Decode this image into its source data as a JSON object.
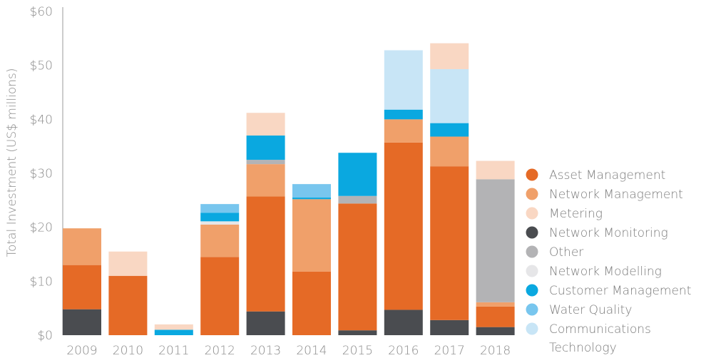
{
  "chart_data": {
    "type": "bar",
    "stacked": true,
    "title": "",
    "xlabel": "",
    "ylabel": "Total Investment (US$ millions)",
    "ylim": [
      0,
      60
    ],
    "yticks": [
      "$0",
      "$10",
      "$20",
      "$30",
      "$40",
      "$50",
      "$60"
    ],
    "categories": [
      "2009",
      "2010",
      "2011",
      "2012",
      "2013",
      "2014",
      "2015",
      "2016",
      "2017",
      "2018"
    ],
    "legend_position": "right",
    "series": [
      {
        "name": "Network Monitoring",
        "color": "#4a4c50",
        "values": [
          4.8,
          0,
          0,
          0,
          4.4,
          0,
          0.9,
          4.7,
          2.8,
          1.5
        ]
      },
      {
        "name": "Asset Management",
        "color": "#e56a26",
        "values": [
          8.2,
          11.0,
          0,
          14.5,
          21.3,
          11.8,
          23.5,
          31.0,
          28.5,
          3.8
        ]
      },
      {
        "name": "Network Management",
        "color": "#f0a06a",
        "values": [
          6.8,
          0,
          0,
          6.0,
          6.0,
          13.4,
          0,
          4.3,
          5.5,
          0.8
        ]
      },
      {
        "name": "Other",
        "color": "#b3b3b5",
        "values": [
          0,
          0,
          0,
          0,
          0.8,
          0,
          1.4,
          0,
          0,
          22.8
        ]
      },
      {
        "name": "Network Modelling",
        "color": "#e6e6e8",
        "values": [
          0,
          0,
          0,
          0.6,
          0,
          0,
          0,
          0,
          0,
          0
        ]
      },
      {
        "name": "Customer Management",
        "color": "#0aa8e0",
        "values": [
          0,
          0,
          1.0,
          1.6,
          4.5,
          0.3,
          8.0,
          1.8,
          2.5,
          0
        ]
      },
      {
        "name": "Water Quality",
        "color": "#78c6ee",
        "values": [
          0,
          0,
          0,
          1.6,
          0,
          2.5,
          0,
          0,
          0,
          0
        ]
      },
      {
        "name": "Communications Technology",
        "color": "#c8e5f6",
        "values": [
          0,
          0,
          0,
          0,
          0,
          0,
          0,
          11.0,
          10.0,
          0
        ]
      },
      {
        "name": "Metering",
        "color": "#f9d7c3",
        "values": [
          0,
          4.5,
          1.0,
          0,
          4.2,
          0,
          0,
          0,
          4.8,
          3.4
        ]
      }
    ],
    "legend": [
      {
        "name": "Asset Management",
        "color": "#e56a26"
      },
      {
        "name": "Network Management",
        "color": "#f0a06a"
      },
      {
        "name": "Metering",
        "color": "#f9d7c3"
      },
      {
        "name": "Network Monitoring",
        "color": "#4a4c50"
      },
      {
        "name": "Other",
        "color": "#b3b3b5"
      },
      {
        "name": "Network Modelling",
        "color": "#e6e6e8"
      },
      {
        "name": "Customer Management",
        "color": "#0aa8e0"
      },
      {
        "name": "Water Quality",
        "color": "#78c6ee"
      },
      {
        "name": "Communications\nTechnology",
        "color": "#c8e5f6"
      }
    ]
  }
}
